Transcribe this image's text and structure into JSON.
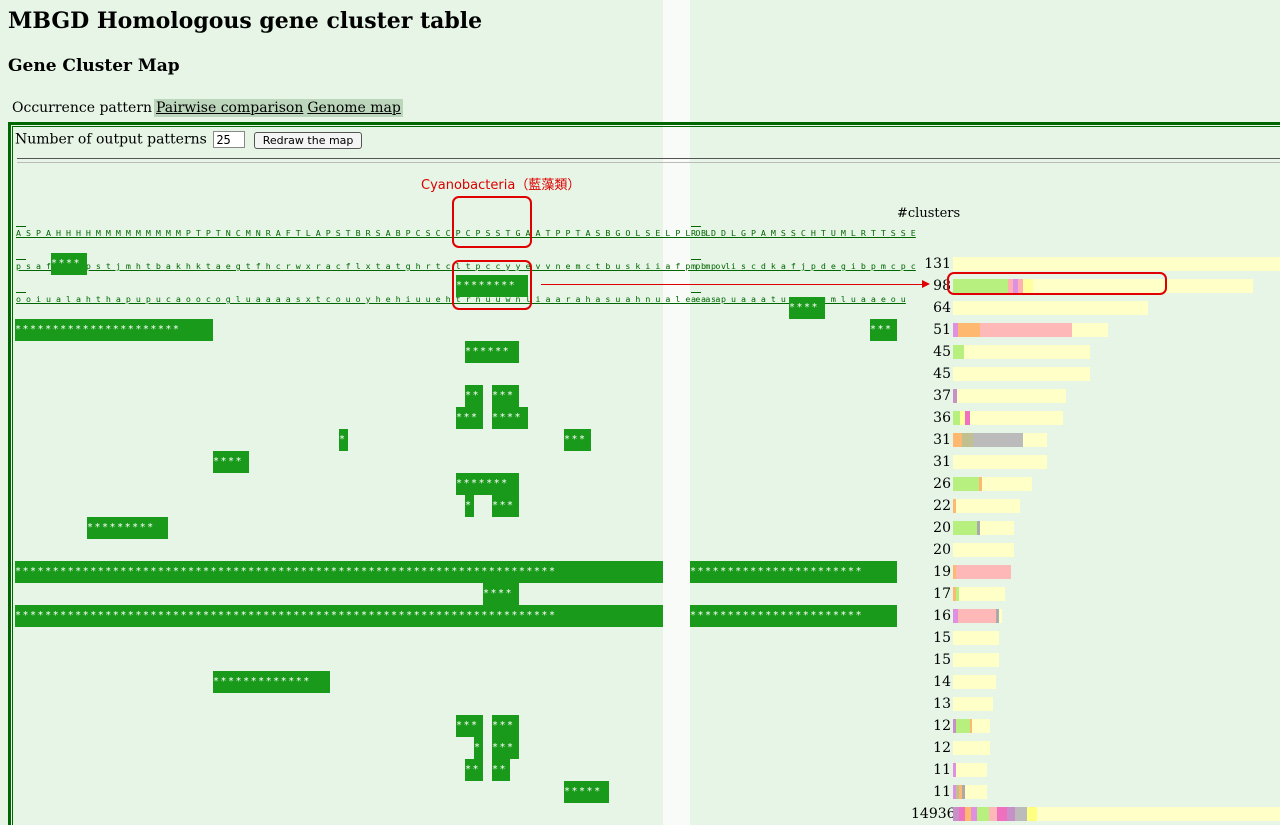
{
  "page": {
    "title": "MBGD Homologous gene cluster table",
    "subtitle": "Gene Cluster Map"
  },
  "tabs": [
    {
      "label": "Occurrence pattern",
      "active": true
    },
    {
      "label": "Pairwise comparison",
      "active": false
    },
    {
      "label": "Genome map",
      "active": false
    }
  ],
  "controls": {
    "patterns_label": "Number of output patterns",
    "patterns_value": "25",
    "redraw_label": "Redraw the map"
  },
  "annotation": {
    "text": "Cyanobacteria（藍藻類）",
    "color": "#dd0000"
  },
  "columns_header": {
    "left": [
      "A S P A H H H H M M M M M M M M M P T P T N C M N R A F T L A P S T B R S A B P C S C C P C P S S T G A A T P P T A S B G O L S E L P L O L",
      "p s a f m a w p s t j m h t b a k h k t a e g t f h c r w x r a c f l x t a t g h r t c l t p c c y y e v v n e m c t b u s k i i a f p p m o l",
      "o o i u a l a h t h a p u p u c a o o c o g l u a a a a s x t c o u o y h e h i u u e h t r n u u w n l i a a r a h a s u a h n u a l e e a a"
    ],
    "right": [
      "R B D D L G P A M S S C H T U M L R T T S S E",
      "m b p v i s c d k a f j p d e g i b p m c p c",
      "a a s p u a a a t u e y n u m l u a a e o u"
    ],
    "clusters_label": "#clusters"
  },
  "rows": [
    {
      "count": "131",
      "cells": [
        {
          "x": 51,
          "w": 36,
          "text": "****"
        }
      ],
      "bar": 400,
      "segs": []
    },
    {
      "count": "98",
      "cells": [
        {
          "x": 456,
          "w": 72,
          "text": "********"
        }
      ],
      "bar": 300,
      "segs": [
        {
          "w": 55,
          "c": "#b8f080"
        },
        {
          "w": 5,
          "c": "#ffb0b0"
        },
        {
          "w": 5,
          "c": "#e090e0"
        },
        {
          "w": 5,
          "c": "#ffb0b0"
        },
        {
          "w": 10,
          "c": "#ffffa0"
        }
      ]
    },
    {
      "count": "64",
      "cells": [
        {
          "x": 789,
          "w": 36,
          "text": "****"
        }
      ],
      "bar": 195,
      "segs": []
    },
    {
      "count": "51",
      "cells": [
        {
          "x": 15,
          "w": 198,
          "text": "**********************"
        },
        {
          "x": 870,
          "w": 27,
          "text": "***"
        }
      ],
      "bar": 155,
      "segs": [
        {
          "w": 5,
          "c": "#e090e0"
        },
        {
          "w": 22,
          "c": "#ffb870"
        },
        {
          "w": 92,
          "c": "#ffb8b8"
        }
      ]
    },
    {
      "count": "45",
      "cells": [
        {
          "x": 465,
          "w": 54,
          "text": "******"
        }
      ],
      "bar": 137,
      "segs": [
        {
          "w": 11,
          "c": "#b8f080"
        }
      ]
    },
    {
      "count": "45",
      "cells": [],
      "bar": 137,
      "segs": []
    },
    {
      "count": "37",
      "cells": [
        {
          "x": 465,
          "w": 18,
          "text": "**"
        },
        {
          "x": 492,
          "w": 27,
          "text": "***"
        }
      ],
      "bar": 113,
      "segs": [
        {
          "w": 4,
          "c": "#c890c8"
        }
      ]
    },
    {
      "count": "36",
      "cells": [
        {
          "x": 456,
          "w": 27,
          "text": "***"
        },
        {
          "x": 492,
          "w": 36,
          "text": "****"
        }
      ],
      "bar": 110,
      "segs": [
        {
          "w": 7,
          "c": "#b8f080"
        },
        {
          "w": 5,
          "c": "#ffffa0"
        },
        {
          "w": 5,
          "c": "#f070c0"
        }
      ]
    },
    {
      "count": "31",
      "cells": [
        {
          "x": 339,
          "w": 9,
          "text": "*"
        },
        {
          "x": 564,
          "w": 27,
          "text": "***"
        }
      ],
      "bar": 94,
      "segs": [
        {
          "w": 9,
          "c": "#ffb870"
        },
        {
          "w": 11,
          "c": "#c0c090"
        },
        {
          "w": 50,
          "c": "#bbbbbb"
        }
      ]
    },
    {
      "count": "31",
      "cells": [
        {
          "x": 213,
          "w": 36,
          "text": "****"
        }
      ],
      "bar": 94,
      "segs": []
    },
    {
      "count": "26",
      "cells": [
        {
          "x": 456,
          "w": 63,
          "text": "*******"
        }
      ],
      "bar": 79,
      "segs": [
        {
          "w": 26,
          "c": "#b8f080"
        },
        {
          "w": 3,
          "c": "#ffb870"
        }
      ]
    },
    {
      "count": "22",
      "cells": [
        {
          "x": 465,
          "w": 9,
          "text": "*"
        },
        {
          "x": 492,
          "w": 27,
          "text": "***"
        }
      ],
      "bar": 67,
      "segs": [
        {
          "w": 3,
          "c": "#ffb870"
        }
      ]
    },
    {
      "count": "20",
      "cells": [
        {
          "x": 87,
          "w": 81,
          "text": "*********"
        }
      ],
      "bar": 61,
      "segs": [
        {
          "w": 24,
          "c": "#b8f080"
        },
        {
          "w": 3,
          "c": "#aaaaaa"
        }
      ]
    },
    {
      "count": "20",
      "cells": [],
      "bar": 61,
      "segs": []
    },
    {
      "count": "19",
      "cells": [
        {
          "x": 15,
          "w": 648,
          "text": "************************************************************************"
        },
        {
          "x": 690,
          "w": 207,
          "text": "***********************"
        }
      ],
      "bar": 58,
      "segs": [
        {
          "w": 3,
          "c": "#ffb870"
        },
        {
          "w": 55,
          "c": "#ffb8b8"
        }
      ]
    },
    {
      "count": "17",
      "cells": [
        {
          "x": 483,
          "w": 36,
          "text": "****"
        }
      ],
      "bar": 52,
      "segs": [
        {
          "w": 3,
          "c": "#ffb870"
        },
        {
          "w": 3,
          "c": "#b8f080"
        }
      ]
    },
    {
      "count": "16",
      "cells": [
        {
          "x": 15,
          "w": 648,
          "text": "************************************************************************"
        },
        {
          "x": 690,
          "w": 207,
          "text": "***********************"
        }
      ],
      "bar": 49,
      "segs": [
        {
          "w": 5,
          "c": "#e090e0"
        },
        {
          "w": 38,
          "c": "#ffb8b8"
        },
        {
          "w": 3,
          "c": "#aaaaaa"
        }
      ]
    },
    {
      "count": "15",
      "cells": [],
      "bar": 46,
      "segs": []
    },
    {
      "count": "15",
      "cells": [],
      "bar": 46,
      "segs": []
    },
    {
      "count": "14",
      "cells": [
        {
          "x": 213,
          "w": 117,
          "text": "*************"
        }
      ],
      "bar": 43,
      "segs": []
    },
    {
      "count": "13",
      "cells": [],
      "bar": 40,
      "segs": []
    },
    {
      "count": "12",
      "cells": [
        {
          "x": 456,
          "w": 27,
          "text": "***"
        },
        {
          "x": 492,
          "w": 27,
          "text": "***"
        }
      ],
      "bar": 37,
      "segs": [
        {
          "w": 3,
          "c": "#c890c8"
        },
        {
          "w": 14,
          "c": "#b8f080"
        },
        {
          "w": 2,
          "c": "#ffb870"
        }
      ]
    },
    {
      "count": "12",
      "cells": [
        {
          "x": 474,
          "w": 9,
          "text": "*"
        },
        {
          "x": 492,
          "w": 27,
          "text": "***"
        }
      ],
      "bar": 37,
      "segs": []
    },
    {
      "count": "11",
      "cells": [
        {
          "x": 465,
          "w": 18,
          "text": "**"
        },
        {
          "x": 492,
          "w": 18,
          "text": "**"
        }
      ],
      "bar": 34,
      "segs": [
        {
          "w": 3,
          "c": "#e090e0"
        }
      ]
    },
    {
      "count": "11",
      "cells": [
        {
          "x": 564,
          "w": 45,
          "text": "*****"
        }
      ],
      "bar": 34,
      "segs": [
        {
          "w": 3,
          "c": "#e090e0"
        },
        {
          "w": 3,
          "c": "#c0c090"
        },
        {
          "w": 3,
          "c": "#ffb870"
        },
        {
          "w": 3,
          "c": "#aaaaaa"
        }
      ]
    },
    {
      "count": "14936",
      "cells": [],
      "bar": 330,
      "segs": [
        {
          "w": 6,
          "c": "#c890c8"
        },
        {
          "w": 6,
          "c": "#f070c0"
        },
        {
          "w": 6,
          "c": "#ffb870"
        },
        {
          "w": 6,
          "c": "#e090e0"
        },
        {
          "w": 12,
          "c": "#b8f080"
        },
        {
          "w": 8,
          "c": "#ffb8b8"
        },
        {
          "w": 10,
          "c": "#f070c0"
        },
        {
          "w": 8,
          "c": "#c890c8"
        },
        {
          "w": 12,
          "c": "#bbbbbb"
        },
        {
          "w": 10,
          "c": "#ffff80"
        }
      ]
    }
  ]
}
